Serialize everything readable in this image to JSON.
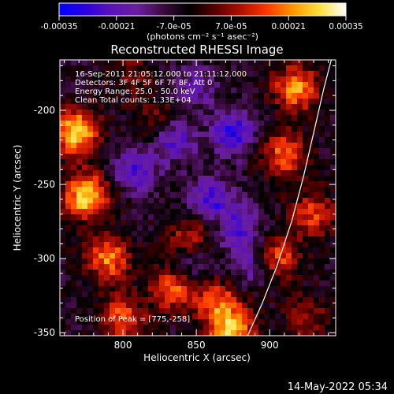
{
  "colorbar": {
    "tick_labels": [
      "-0.00035",
      "-0.00021",
      "-7.0e-05",
      "7.0e-05",
      "0.00021",
      "0.00035"
    ],
    "units": "(photons cm⁻² s⁻¹ asec⁻²)",
    "colormap": [
      "#0000ff",
      "#2a00e0",
      "#5b13b7",
      "#6a1e9e",
      "#3a0b3c",
      "#000000",
      "#5a0000",
      "#b01000",
      "#ff3a00",
      "#ff9a00",
      "#ffe040",
      "#ffffff"
    ]
  },
  "chart_data": {
    "type": "heatmap",
    "title": "Reconstructed RHESSI Image",
    "xlabel": "Heliocentric X (arcsec)",
    "ylabel": "Heliocentric Y (arcsec)",
    "xlim": [
      757,
      945
    ],
    "ylim": [
      -352,
      -166
    ],
    "x_ticks": [
      800,
      850,
      900
    ],
    "y_ticks": [
      -350,
      -300,
      -250,
      -200
    ],
    "zlim": [
      -0.00035,
      0.00035
    ],
    "annotations": [
      "16-Sep-2011 21:05:12.000 to 21:11:12.000",
      "Detectors: 3F 4F 5F 6F 7F 8F, Att 0",
      "Energy Range: 25.0 - 50.0 keV",
      "Clean    Total counts: 1.33E+04"
    ],
    "peak_label": "Position of Peak = [775,-258]",
    "peak": [
      775,
      -258
    ],
    "limb_curve": [
      [
        885,
        -352
      ],
      [
        895,
        -330
      ],
      [
        905,
        -305
      ],
      [
        915,
        -275
      ],
      [
        923,
        -245
      ],
      [
        930,
        -215
      ],
      [
        937,
        -185
      ],
      [
        942,
        -166
      ]
    ],
    "hot_regions": [
      {
        "x": 768,
        "y": -215,
        "value": 0.00035
      },
      {
        "x": 775,
        "y": -258,
        "value": 0.00035
      },
      {
        "x": 790,
        "y": -300,
        "value": 0.00026
      },
      {
        "x": 800,
        "y": -340,
        "value": 0.00022
      },
      {
        "x": 835,
        "y": -320,
        "value": 0.00024
      },
      {
        "x": 865,
        "y": -330,
        "value": 0.00022
      },
      {
        "x": 875,
        "y": -350,
        "value": 0.0003
      },
      {
        "x": 845,
        "y": -285,
        "value": 0.00016
      },
      {
        "x": 910,
        "y": -230,
        "value": 0.00024
      },
      {
        "x": 918,
        "y": -185,
        "value": 0.00028
      },
      {
        "x": 905,
        "y": -300,
        "value": 0.00022
      },
      {
        "x": 930,
        "y": -270,
        "value": 0.0002
      },
      {
        "x": 925,
        "y": -340,
        "value": 0.00014
      },
      {
        "x": 822,
        "y": -205,
        "value": 0.0001
      },
      {
        "x": 805,
        "y": -175,
        "value": 9e-05
      }
    ],
    "cold_regions": [
      {
        "x": 808,
        "y": -240,
        "value": -0.0002
      },
      {
        "x": 835,
        "y": -220,
        "value": -0.00018
      },
      {
        "x": 860,
        "y": -260,
        "value": -0.0002
      },
      {
        "x": 875,
        "y": -215,
        "value": -0.00024
      },
      {
        "x": 880,
        "y": -280,
        "value": -0.00018
      },
      {
        "x": 845,
        "y": -305,
        "value": -0.00012
      },
      {
        "x": 888,
        "y": -305,
        "value": -0.00015
      },
      {
        "x": 850,
        "y": -185,
        "value": -0.00012
      }
    ]
  },
  "timestamp": "14-May-2022 05:34"
}
